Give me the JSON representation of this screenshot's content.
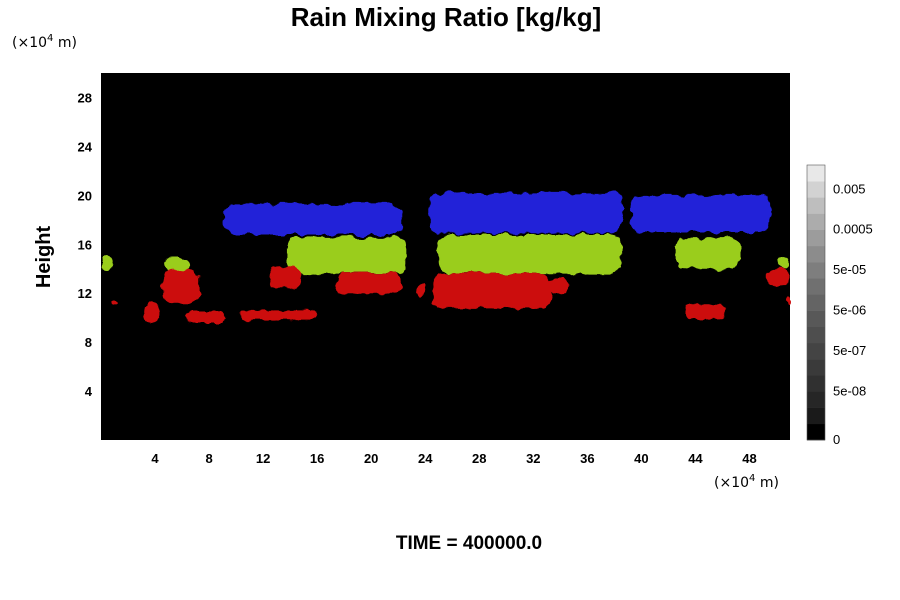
{
  "chart_data": {
    "type": "heatmap",
    "title": "Rain Mixing Ratio [kg/kg]",
    "ylabel": "Height",
    "xlabel": "",
    "y_unit": {
      "prefix": "(×10",
      "exp": "4",
      "suffix": " m)"
    },
    "x_unit": {
      "prefix": "(×10",
      "exp": "4",
      "suffix": " m)"
    },
    "xlim": [
      0,
      51
    ],
    "ylim": [
      0,
      30
    ],
    "x_ticks": [
      "4",
      "8",
      "12",
      "16",
      "20",
      "24",
      "28",
      "32",
      "36",
      "40",
      "44",
      "48"
    ],
    "y_ticks": [
      "4",
      "8",
      "12",
      "16",
      "20",
      "24",
      "28"
    ],
    "colorbar": {
      "labels": [
        "0",
        "5e-08",
        "5e-07",
        "5e-06",
        "5e-05",
        "0.0005",
        "0.005"
      ],
      "levels": 17,
      "colors": [
        "#000000",
        "#1a1a1a",
        "#262626",
        "#303030",
        "#3a3a3a",
        "#444444",
        "#4e4e4e",
        "#585858",
        "#646464",
        "#707070",
        "#7e7e7e",
        "#8c8c8c",
        "#9c9c9c",
        "#acacac",
        "#bebebe",
        "#d2d2d2",
        "#e8e8e8"
      ]
    },
    "series": [
      {
        "colour": "#2323d8",
        "regions": [
          {
            "x0": 9.0,
            "x1": 22.3,
            "y0": 16.8,
            "y1": 19.3
          },
          {
            "x0": 24.3,
            "x1": 38.6,
            "y0": 16.9,
            "y1": 20.2
          },
          {
            "x0": 39.2,
            "x1": 49.5,
            "y0": 17.0,
            "y1": 20.0
          }
        ]
      },
      {
        "colour": "#9acd1e",
        "regions": [
          {
            "x0": 13.8,
            "x1": 22.6,
            "y0": 13.6,
            "y1": 16.6
          },
          {
            "x0": 25.0,
            "x1": 38.5,
            "y0": 13.6,
            "y1": 16.8
          },
          {
            "x0": 42.5,
            "x1": 47.3,
            "y0": 14.0,
            "y1": 16.5
          },
          {
            "x0": 4.7,
            "x1": 6.6,
            "y0": 13.6,
            "y1": 15.0
          },
          {
            "x0": 0.0,
            "x1": 0.9,
            "y0": 14.0,
            "y1": 15.0
          },
          {
            "x0": 50.1,
            "x1": 51.0,
            "y0": 14.0,
            "y1": 15.0
          }
        ]
      },
      {
        "colour": "#cc1010",
        "regions": [
          {
            "x0": 24.6,
            "x1": 33.3,
            "y0": 10.8,
            "y1": 13.6
          },
          {
            "x0": 17.3,
            "x1": 22.3,
            "y0": 12.0,
            "y1": 13.6
          },
          {
            "x0": 12.4,
            "x1": 14.8,
            "y0": 12.4,
            "y1": 14.2
          },
          {
            "x0": 4.6,
            "x1": 7.3,
            "y0": 11.1,
            "y1": 14.0
          },
          {
            "x0": 10.3,
            "x1": 15.8,
            "y0": 9.8,
            "y1": 10.6
          },
          {
            "x0": 3.2,
            "x1": 4.4,
            "y0": 9.6,
            "y1": 11.3
          },
          {
            "x0": 6.3,
            "x1": 9.3,
            "y0": 9.6,
            "y1": 10.5
          },
          {
            "x0": 43.2,
            "x1": 46.3,
            "y0": 9.9,
            "y1": 11.1
          },
          {
            "x0": 49.2,
            "x1": 51.0,
            "y0": 12.6,
            "y1": 14.0
          },
          {
            "x0": 23.3,
            "x1": 24.0,
            "y0": 11.6,
            "y1": 12.8
          },
          {
            "x0": 33.0,
            "x1": 34.6,
            "y0": 12.0,
            "y1": 13.2
          },
          {
            "x0": 0.7,
            "x1": 1.1,
            "y0": 11.0,
            "y1": 11.4
          },
          {
            "x0": 50.7,
            "x1": 51.0,
            "y0": 11.2,
            "y1": 11.7
          }
        ]
      }
    ]
  },
  "footer": {
    "text": "TIME = 400000.0"
  }
}
